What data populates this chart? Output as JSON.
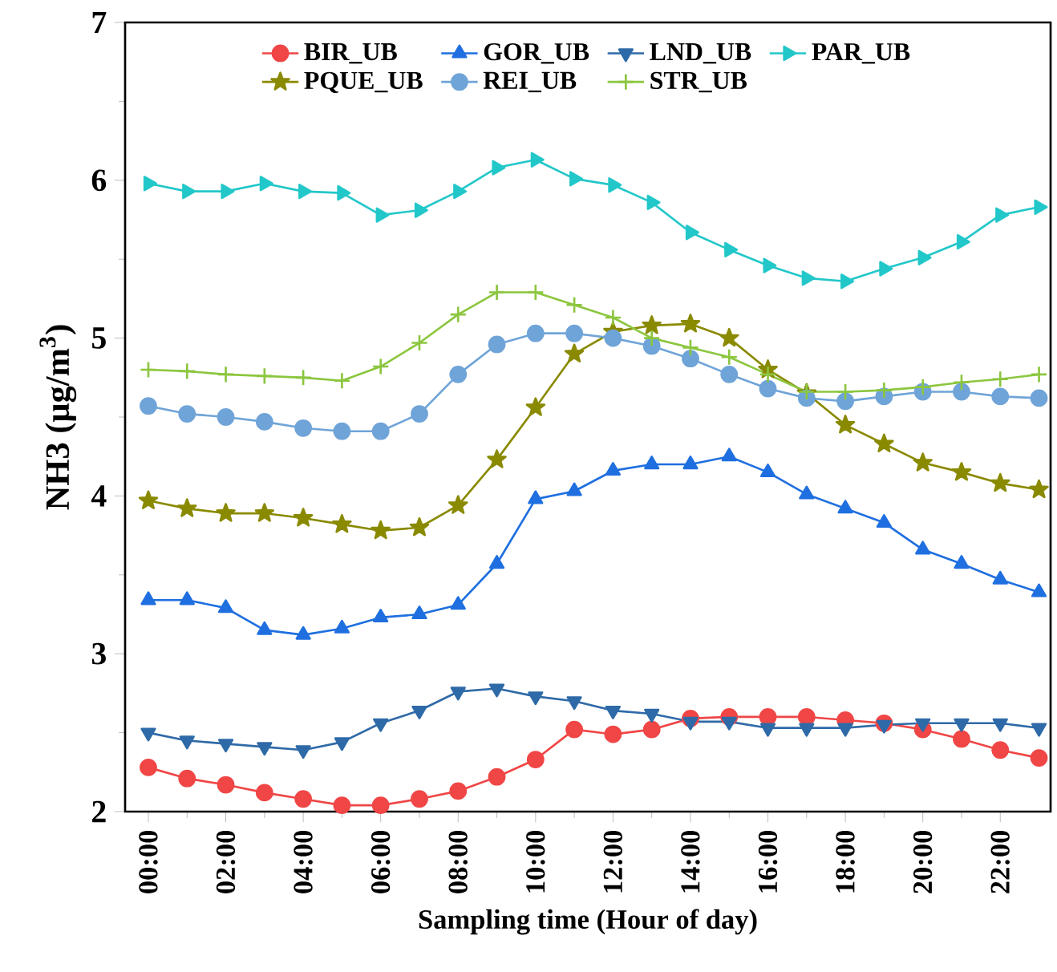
{
  "chart_data": {
    "type": "line",
    "xlabel": "Sampling time (Hour of day)",
    "ylabel": "NH3 (μg/m$^{3}$)",
    "x": [
      0,
      1,
      2,
      3,
      4,
      5,
      6,
      7,
      8,
      9,
      10,
      11,
      12,
      13,
      14,
      15,
      16,
      17,
      18,
      19,
      20,
      21,
      22,
      23
    ],
    "xlim": [
      -0.6,
      23.3
    ],
    "ylim": [
      2,
      7
    ],
    "xticks": [
      {
        "value": 0,
        "label": "00:00"
      },
      {
        "value": 2,
        "label": "02:00"
      },
      {
        "value": 4,
        "label": "04:00"
      },
      {
        "value": 6,
        "label": "06:00"
      },
      {
        "value": 8,
        "label": "08:00"
      },
      {
        "value": 10,
        "label": "10:00"
      },
      {
        "value": 12,
        "label": "12:00"
      },
      {
        "value": 14,
        "label": "14:00"
      },
      {
        "value": 16,
        "label": "16:00"
      },
      {
        "value": 18,
        "label": "18:00"
      },
      {
        "value": 20,
        "label": "20:00"
      },
      {
        "value": 22,
        "label": "22:00"
      }
    ],
    "yticks": [
      2,
      3,
      4,
      5,
      6,
      7
    ],
    "legend": "top",
    "line_style": "solid",
    "series": [
      {
        "name": "BIR_UB",
        "color": "#f04646",
        "marker": "circle",
        "values": [
          2.28,
          2.21,
          2.17,
          2.12,
          2.08,
          2.04,
          2.04,
          2.08,
          2.13,
          2.22,
          2.33,
          2.52,
          2.49,
          2.52,
          2.59,
          2.6,
          2.6,
          2.6,
          2.58,
          2.56,
          2.52,
          2.46,
          2.39,
          2.34
        ]
      },
      {
        "name": "GOR_UB",
        "color": "#1f6fe0",
        "marker": "triangle",
        "values": [
          3.34,
          3.34,
          3.29,
          3.15,
          3.12,
          3.16,
          3.23,
          3.25,
          3.31,
          3.57,
          3.98,
          4.03,
          4.16,
          4.2,
          4.2,
          4.25,
          4.15,
          4.01,
          3.92,
          3.83,
          3.66,
          3.57,
          3.47,
          3.39
        ]
      },
      {
        "name": "LND_UB",
        "color": "#2f6aa8",
        "marker": "triangle-down",
        "values": [
          2.5,
          2.45,
          2.43,
          2.41,
          2.39,
          2.44,
          2.56,
          2.64,
          2.76,
          2.78,
          2.73,
          2.7,
          2.64,
          2.62,
          2.57,
          2.57,
          2.53,
          2.53,
          2.53,
          2.55,
          2.56,
          2.56,
          2.56,
          2.53
        ]
      },
      {
        "name": "PAR_UB",
        "color": "#22c7c9",
        "marker": "triangle-right",
        "values": [
          5.98,
          5.93,
          5.93,
          5.98,
          5.93,
          5.92,
          5.78,
          5.81,
          5.93,
          6.08,
          6.13,
          6.01,
          5.97,
          5.86,
          5.67,
          5.56,
          5.46,
          5.38,
          5.36,
          5.44,
          5.51,
          5.61,
          5.78,
          5.83
        ]
      },
      {
        "name": "PQUE_UB",
        "color": "#8a8a00",
        "marker": "star",
        "values": [
          3.97,
          3.92,
          3.89,
          3.89,
          3.86,
          3.82,
          3.78,
          3.8,
          3.94,
          4.23,
          4.56,
          4.9,
          5.04,
          5.08,
          5.09,
          5.0,
          4.8,
          4.65,
          4.45,
          4.33,
          4.21,
          4.15,
          4.08,
          4.04
        ]
      },
      {
        "name": "REI_UB",
        "color": "#6fa4d8",
        "marker": "circle",
        "values": [
          4.57,
          4.52,
          4.5,
          4.47,
          4.43,
          4.41,
          4.41,
          4.52,
          4.77,
          4.96,
          5.03,
          5.03,
          5.0,
          4.95,
          4.87,
          4.77,
          4.68,
          4.62,
          4.6,
          4.63,
          4.66,
          4.66,
          4.63,
          4.62
        ]
      },
      {
        "name": "STR_UB",
        "color": "#8cc63f",
        "marker": "cross",
        "values": [
          4.8,
          4.79,
          4.77,
          4.76,
          4.75,
          4.73,
          4.82,
          4.97,
          5.15,
          5.29,
          5.29,
          5.21,
          5.13,
          5.0,
          4.94,
          4.88,
          4.77,
          4.66,
          4.66,
          4.67,
          4.69,
          4.72,
          4.74,
          4.77
        ]
      }
    ]
  }
}
